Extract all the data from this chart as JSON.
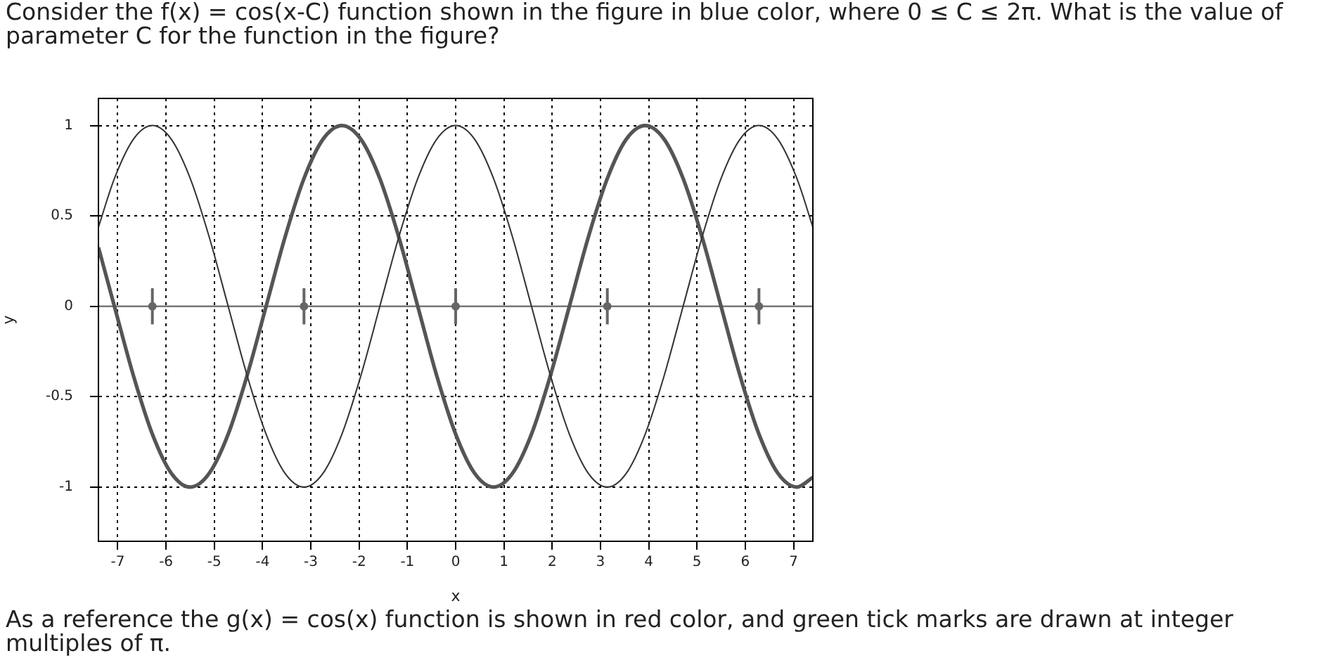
{
  "chart_data": {
    "type": "line",
    "title": "Consider the f(x) = cos(x-C) function shown in the figure in blue color, where 0 ≤ C ≤ 2π. What is the value of parameter C for the function in the figure?",
    "xlabel": "x",
    "ylabel": "y",
    "x": [
      -7.4,
      -7.069,
      -6.676,
      -6.283,
      -5.89,
      -5.498,
      -5.105,
      -4.712,
      -4.32,
      -3.927,
      -3.534,
      -3.142,
      -2.749,
      -2.356,
      -1.963,
      -1.571,
      -1.178,
      -0.785,
      -0.393,
      0,
      0.393,
      0.785,
      1.178,
      1.571,
      1.963,
      2.356,
      2.749,
      3.142,
      3.534,
      3.927,
      4.32,
      4.712,
      5.105,
      5.498,
      5.89,
      6.283,
      6.676,
      7.069,
      7.4
    ],
    "series": [
      {
        "type": "line",
        "color": "#333333",
        "values": [
          0.438,
          0.707,
          0.924,
          1,
          0.924,
          0.707,
          0.383,
          0,
          -0.383,
          -0.707,
          -0.924,
          -1,
          -0.924,
          -0.707,
          -0.383,
          0,
          0.383,
          0.707,
          0.924,
          1,
          0.924,
          0.707,
          0.383,
          0,
          -0.383,
          -0.707,
          -0.924,
          -1,
          -0.924,
          -0.707,
          -0.383,
          0,
          0.383,
          0.707,
          0.924,
          1,
          0.924,
          0.707,
          0.438
        ]
      },
      {
        "type": "line",
        "color": "#555555",
        "values": [
          0.326,
          0,
          -0.383,
          -0.707,
          -0.924,
          -1,
          -0.924,
          -0.707,
          -0.383,
          0,
          0.383,
          0.707,
          0.924,
          1,
          0.924,
          0.707,
          0.383,
          0,
          -0.383,
          -0.707,
          -0.924,
          -1,
          -0.924,
          -0.707,
          -0.383,
          0,
          0.383,
          0.707,
          0.924,
          1,
          0.924,
          0.707,
          0.383,
          0,
          -0.383,
          -0.707,
          -0.924,
          -1,
          -0.946
        ]
      },
      {
        "type": "scatter",
        "color": "#666666",
        "x": [
          -6.283,
          -3.142,
          0,
          3.142,
          6.283
        ],
        "values": [
          0,
          0,
          0,
          0,
          0
        ],
        "marker": "circle",
        "errors": [
          0.1,
          0.1,
          0.1,
          0.1,
          0.1
        ]
      }
    ],
    "xlim": [
      -7.4,
      7.4
    ],
    "xticks": [
      -7,
      -6,
      -5,
      -4,
      -3,
      -2,
      -1,
      0,
      1,
      2,
      3,
      4,
      5,
      6,
      7
    ],
    "ylim": [
      -1.3,
      1.15
    ],
    "yticks": [
      -1,
      -0.5,
      0,
      0.5,
      1
    ],
    "grid": true,
    "legend": false,
    "marker": "none",
    "ref_lines": [
      {
        "axis": "y",
        "value": 0,
        "color": "#777777"
      }
    ],
    "annotations": [
      "As a reference the g(x) = cos(x) function is shown in red color, and green tick marks are drawn at integer multiples of π."
    ]
  }
}
